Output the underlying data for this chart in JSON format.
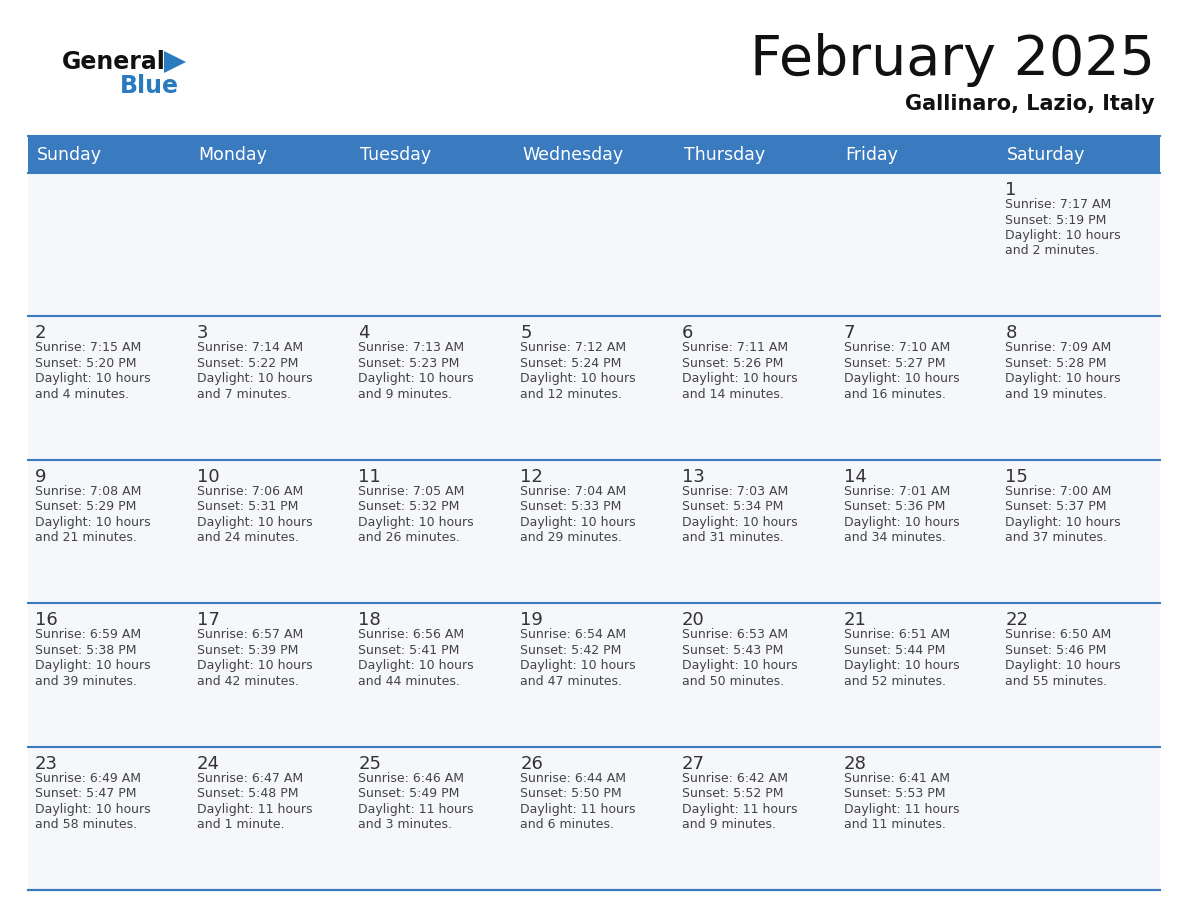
{
  "title": "February 2025",
  "subtitle": "Gallinaro, Lazio, Italy",
  "header_bg": "#3a7abf",
  "header_text": "#ffffff",
  "cell_bg": "#f5f7fa",
  "day_headers": [
    "Sunday",
    "Monday",
    "Tuesday",
    "Wednesday",
    "Thursday",
    "Friday",
    "Saturday"
  ],
  "cal_data": [
    [
      null,
      null,
      null,
      null,
      null,
      null,
      {
        "day": 1,
        "sunrise": "7:17 AM",
        "sunset": "5:19 PM",
        "daylight": "10 hours\nand 2 minutes."
      }
    ],
    [
      {
        "day": 2,
        "sunrise": "7:15 AM",
        "sunset": "5:20 PM",
        "daylight": "10 hours\nand 4 minutes."
      },
      {
        "day": 3,
        "sunrise": "7:14 AM",
        "sunset": "5:22 PM",
        "daylight": "10 hours\nand 7 minutes."
      },
      {
        "day": 4,
        "sunrise": "7:13 AM",
        "sunset": "5:23 PM",
        "daylight": "10 hours\nand 9 minutes."
      },
      {
        "day": 5,
        "sunrise": "7:12 AM",
        "sunset": "5:24 PM",
        "daylight": "10 hours\nand 12 minutes."
      },
      {
        "day": 6,
        "sunrise": "7:11 AM",
        "sunset": "5:26 PM",
        "daylight": "10 hours\nand 14 minutes."
      },
      {
        "day": 7,
        "sunrise": "7:10 AM",
        "sunset": "5:27 PM",
        "daylight": "10 hours\nand 16 minutes."
      },
      {
        "day": 8,
        "sunrise": "7:09 AM",
        "sunset": "5:28 PM",
        "daylight": "10 hours\nand 19 minutes."
      }
    ],
    [
      {
        "day": 9,
        "sunrise": "7:08 AM",
        "sunset": "5:29 PM",
        "daylight": "10 hours\nand 21 minutes."
      },
      {
        "day": 10,
        "sunrise": "7:06 AM",
        "sunset": "5:31 PM",
        "daylight": "10 hours\nand 24 minutes."
      },
      {
        "day": 11,
        "sunrise": "7:05 AM",
        "sunset": "5:32 PM",
        "daylight": "10 hours\nand 26 minutes."
      },
      {
        "day": 12,
        "sunrise": "7:04 AM",
        "sunset": "5:33 PM",
        "daylight": "10 hours\nand 29 minutes."
      },
      {
        "day": 13,
        "sunrise": "7:03 AM",
        "sunset": "5:34 PM",
        "daylight": "10 hours\nand 31 minutes."
      },
      {
        "day": 14,
        "sunrise": "7:01 AM",
        "sunset": "5:36 PM",
        "daylight": "10 hours\nand 34 minutes."
      },
      {
        "day": 15,
        "sunrise": "7:00 AM",
        "sunset": "5:37 PM",
        "daylight": "10 hours\nand 37 minutes."
      }
    ],
    [
      {
        "day": 16,
        "sunrise": "6:59 AM",
        "sunset": "5:38 PM",
        "daylight": "10 hours\nand 39 minutes."
      },
      {
        "day": 17,
        "sunrise": "6:57 AM",
        "sunset": "5:39 PM",
        "daylight": "10 hours\nand 42 minutes."
      },
      {
        "day": 18,
        "sunrise": "6:56 AM",
        "sunset": "5:41 PM",
        "daylight": "10 hours\nand 44 minutes."
      },
      {
        "day": 19,
        "sunrise": "6:54 AM",
        "sunset": "5:42 PM",
        "daylight": "10 hours\nand 47 minutes."
      },
      {
        "day": 20,
        "sunrise": "6:53 AM",
        "sunset": "5:43 PM",
        "daylight": "10 hours\nand 50 minutes."
      },
      {
        "day": 21,
        "sunrise": "6:51 AM",
        "sunset": "5:44 PM",
        "daylight": "10 hours\nand 52 minutes."
      },
      {
        "day": 22,
        "sunrise": "6:50 AM",
        "sunset": "5:46 PM",
        "daylight": "10 hours\nand 55 minutes."
      }
    ],
    [
      {
        "day": 23,
        "sunrise": "6:49 AM",
        "sunset": "5:47 PM",
        "daylight": "10 hours\nand 58 minutes."
      },
      {
        "day": 24,
        "sunrise": "6:47 AM",
        "sunset": "5:48 PM",
        "daylight": "11 hours\nand 1 minute."
      },
      {
        "day": 25,
        "sunrise": "6:46 AM",
        "sunset": "5:49 PM",
        "daylight": "11 hours\nand 3 minutes."
      },
      {
        "day": 26,
        "sunrise": "6:44 AM",
        "sunset": "5:50 PM",
        "daylight": "11 hours\nand 6 minutes."
      },
      {
        "day": 27,
        "sunrise": "6:42 AM",
        "sunset": "5:52 PM",
        "daylight": "11 hours\nand 9 minutes."
      },
      {
        "day": 28,
        "sunrise": "6:41 AM",
        "sunset": "5:53 PM",
        "daylight": "11 hours\nand 11 minutes."
      },
      null
    ]
  ],
  "divider_color": "#3a7abf",
  "text_color": "#444444",
  "day_num_color": "#333333",
  "logo_general_color": "#111111",
  "logo_blue_color": "#2a7abf",
  "logo_triangle_color": "#2a7abf"
}
